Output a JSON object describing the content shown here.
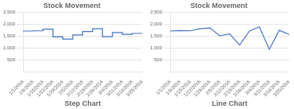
{
  "chart_data": [
    {
      "type": "step",
      "title": "Stock Movement",
      "xlabel": "Step Chart",
      "categories": [
        "1/1/2016",
        "1/8/2016",
        "1/15/2016",
        "1/22/2016",
        "1/29/2016",
        "2/5/2016",
        "2/12/2016",
        "2/19/2016",
        "2/26/2016",
        "3/4/2016",
        "3/11/2016",
        "3/18/2016",
        "3/25/2016"
      ],
      "values": [
        1700,
        1720,
        1730,
        1800,
        1470,
        1380,
        1560,
        1700,
        1820,
        1480,
        1660,
        1580,
        1620
      ],
      "color": "#4472C4",
      "ylim": [
        0,
        2500
      ],
      "yticks": [
        500,
        {
          "value": 1000,
          "label": "1,000"
        },
        {
          "value": 1500,
          "label": "1,500"
        },
        {
          "value": 2000,
          "label": "2,000"
        },
        {
          "value": 2500,
          "label": "2,500"
        }
      ],
      "grid": true
    },
    {
      "type": "line",
      "title": "Stock Movement",
      "xlabel": "Line Chart",
      "categories": [
        "1/1/2016",
        "1/8/2016",
        "1/15/2016",
        "1/22/2016",
        "1/29/2016",
        "2/5/2016",
        "2/12/2016",
        "2/19/2016",
        "2/26/2016",
        "3/4/2016",
        "3/11/2016",
        "3/18/2016",
        "3/25/2016"
      ],
      "values": [
        1720,
        1740,
        1730,
        1820,
        1850,
        1520,
        1600,
        1130,
        1720,
        1900,
        950,
        1750,
        1580
      ],
      "color": "#4472C4",
      "ylim": [
        0,
        2500
      ],
      "yticks": [
        500,
        {
          "value": 1000,
          "label": "1,000"
        },
        {
          "value": 1500,
          "label": "1,500"
        },
        {
          "value": 2000,
          "label": "2,000"
        },
        {
          "value": 2500,
          "label": "2,500"
        }
      ],
      "grid": true
    }
  ]
}
